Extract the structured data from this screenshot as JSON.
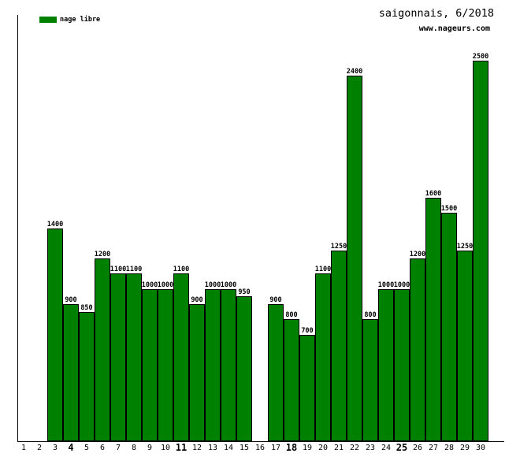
{
  "header": {
    "title": "saigonnais, 6/2018",
    "website": "www.nageurs.com"
  },
  "legend": {
    "label": "nage libre",
    "swatch_color": "#008000"
  },
  "chart_data": {
    "type": "bar",
    "title": "saigonnais, 6/2018",
    "subtitle": "www.nageurs.com",
    "series_name": "nage libre",
    "bar_color": "#008000",
    "categories": [
      1,
      2,
      3,
      4,
      5,
      6,
      7,
      8,
      9,
      10,
      11,
      12,
      13,
      14,
      15,
      16,
      17,
      18,
      19,
      20,
      21,
      22,
      23,
      24,
      25,
      26,
      27,
      28,
      29,
      30
    ],
    "values": [
      null,
      null,
      1400,
      900,
      850,
      1200,
      1100,
      1100,
      1000,
      1000,
      1100,
      900,
      1000,
      1000,
      950,
      null,
      900,
      800,
      700,
      1100,
      1250,
      2400,
      800,
      1000,
      1000,
      1200,
      1600,
      1500,
      1250,
      2500
    ],
    "bold_categories": [
      4,
      11,
      18,
      25
    ],
    "ylim": [
      0,
      2500
    ],
    "xlabel": "",
    "ylabel": "",
    "grid": false,
    "legend_position": "top-left",
    "value_labels": true
  }
}
